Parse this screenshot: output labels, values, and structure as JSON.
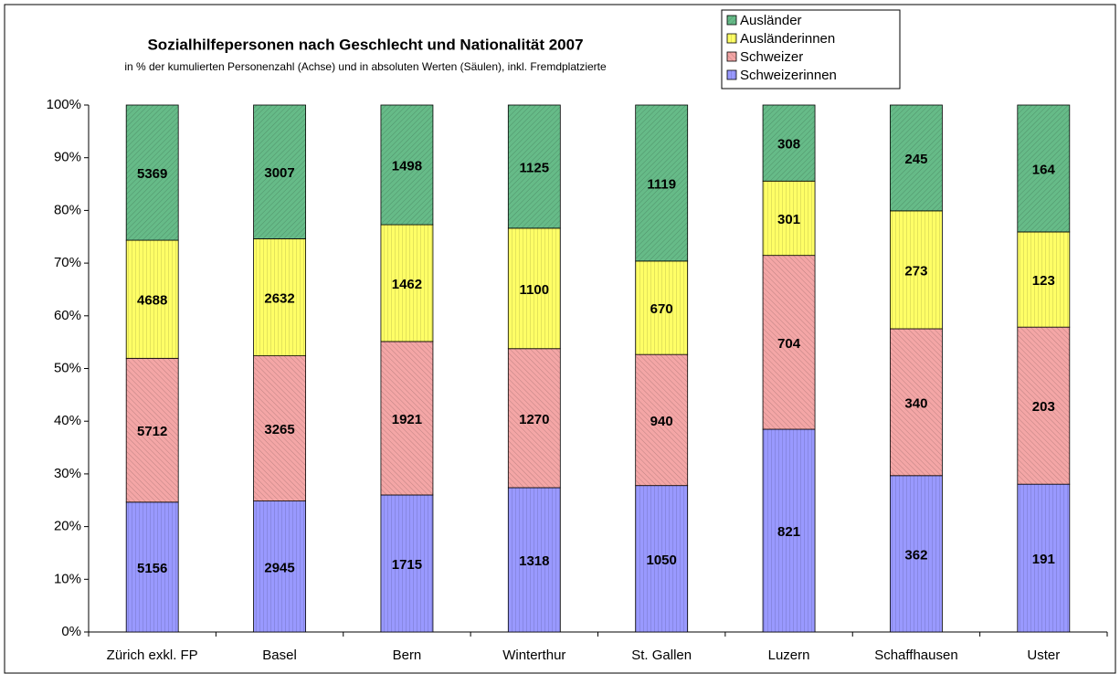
{
  "chart_data": {
    "type": "bar",
    "stacking": "percent",
    "title": "Sozialhilfepersonen nach Geschlecht und Nationalität 2007",
    "subtitle": "in % der kumulierten Personenzahl (Achse) und in absoluten Werten (Säulen), inkl. Fremdplatzierte",
    "categories": [
      "Zürich exkl. FP",
      "Basel",
      "Bern",
      "Winterthur",
      "St. Gallen",
      "Luzern",
      "Schaffhausen",
      "Uster"
    ],
    "series": [
      {
        "name": "Schweizerinnen",
        "color": "#9999ff",
        "values": [
          5156,
          2945,
          1715,
          1318,
          1050,
          821,
          362,
          191
        ]
      },
      {
        "name": "Schweizer",
        "color": "#f4a6a6",
        "values": [
          5712,
          3265,
          1921,
          1270,
          940,
          704,
          340,
          203
        ]
      },
      {
        "name": "Ausländerinnen",
        "color": "#ffff66",
        "values": [
          4688,
          2632,
          1462,
          1100,
          670,
          301,
          273,
          123
        ]
      },
      {
        "name": "Ausländer",
        "color": "#66bb88",
        "values": [
          5369,
          3007,
          1498,
          1125,
          1119,
          308,
          245,
          164
        ]
      }
    ],
    "ylim": [
      0,
      100
    ],
    "yticks": [
      {
        "value": 0,
        "label": "0%"
      },
      {
        "value": 10,
        "label": "10%"
      },
      {
        "value": 20,
        "label": "20%"
      },
      {
        "value": 30,
        "label": "30%"
      },
      {
        "value": 40,
        "label": "40%"
      },
      {
        "value": 50,
        "label": "50%"
      },
      {
        "value": 60,
        "label": "60%"
      },
      {
        "value": 70,
        "label": "70%"
      },
      {
        "value": 80,
        "label": "80%"
      },
      {
        "value": 90,
        "label": "90%"
      },
      {
        "value": 100,
        "label": "100%"
      }
    ],
    "grid": false,
    "legend": "top-right"
  }
}
